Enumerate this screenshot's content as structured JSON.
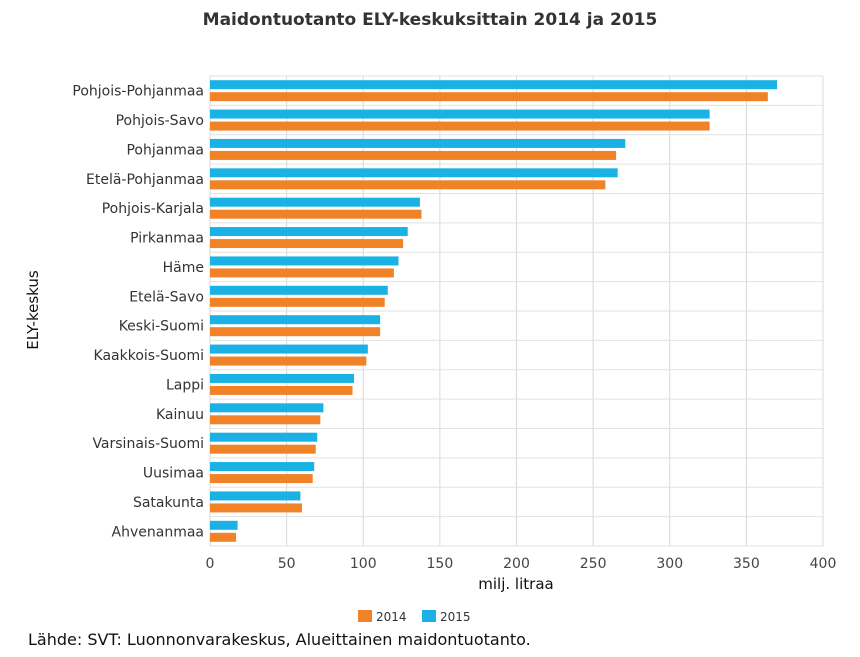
{
  "chart_data": {
    "type": "bar",
    "orientation": "horizontal",
    "title": "Maidontuotanto ELY-keskuksittain 2014 ja 2015",
    "xlabel": "milj. litraa",
    "ylabel": "ELY-keskus",
    "xlim": [
      0,
      400
    ],
    "xticks": [
      0,
      50,
      100,
      150,
      200,
      250,
      300,
      350,
      400
    ],
    "grid": true,
    "legend_position": "bottom",
    "categories": [
      "Pohjois-Pohjanmaa",
      "Pohjois-Savo",
      "Pohjanmaa",
      "Etelä-Pohjanmaa",
      "Pohjois-Karjala",
      "Pirkanmaa",
      "Häme",
      "Etelä-Savo",
      "Keski-Suomi",
      "Kaakkois-Suomi",
      "Lappi",
      "Kainuu",
      "Varsinais-Suomi",
      "Uusimaa",
      "Satakunta",
      "Ahvenanmaa"
    ],
    "series": [
      {
        "name": "2015",
        "color": "#1ab2e4",
        "values": [
          370,
          326,
          271,
          266,
          137,
          129,
          123,
          116,
          111,
          103,
          94,
          74,
          70,
          68,
          59,
          18
        ]
      },
      {
        "name": "2014",
        "color": "#f08228",
        "values": [
          364,
          326,
          265,
          258,
          138,
          126,
          120,
          114,
          111,
          102,
          93,
          72,
          69,
          67,
          60,
          17
        ]
      }
    ],
    "legend_order": [
      "2014",
      "2015"
    ]
  },
  "source": "Lähde: SVT: Luonnonvarakeskus, Alueittainen maidontuotanto."
}
